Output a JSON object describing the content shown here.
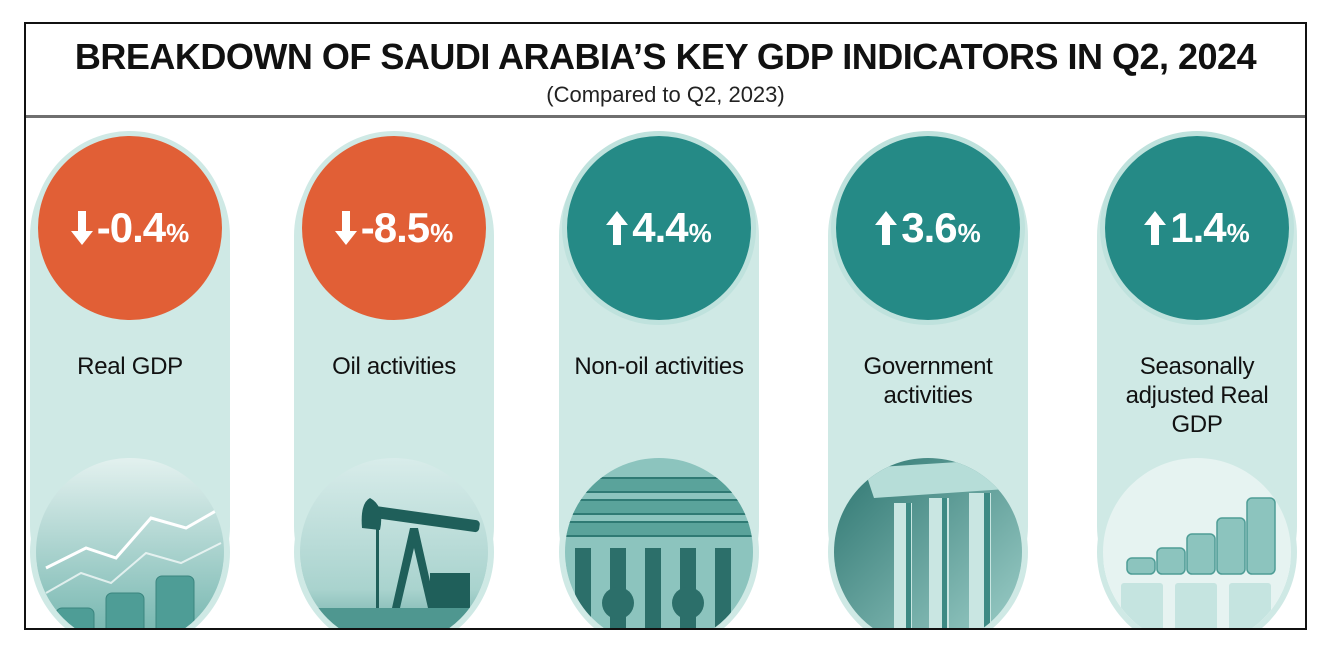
{
  "header": {
    "title": "BREAKDOWN OF SAUDI ARABIA’S KEY GDP INDICATORS IN Q2, 2024",
    "subtitle": "(Compared to Q2, 2023)"
  },
  "colors": {
    "decline": "#e15f36",
    "growth": "#258a86",
    "pill": "#cfe9e5"
  },
  "chart_data": {
    "type": "table",
    "title": "BREAKDOWN OF SAUDI ARABIA’S KEY GDP INDICATORS IN Q2, 2024",
    "subtitle": "(Compared to Q2, 2023)",
    "items": [
      {
        "label": "Real GDP",
        "value": -0.4,
        "display": "-0.4",
        "unit": "%",
        "direction": "down",
        "icon": "arrow-down-icon",
        "image": "coins-chart-photo"
      },
      {
        "label": "Oil activities",
        "value": -8.5,
        "display": "-8.5",
        "unit": "%",
        "direction": "down",
        "icon": "arrow-down-icon",
        "image": "oil-pump-photo"
      },
      {
        "label": "Non-oil activities",
        "value": 4.4,
        "display": "4.4",
        "unit": "%",
        "direction": "up",
        "icon": "arrow-up-icon",
        "image": "pipes-photo"
      },
      {
        "label": "Government activities",
        "value": 3.6,
        "display": "3.6",
        "unit": "%",
        "direction": "up",
        "icon": "arrow-up-icon",
        "image": "columns-photo"
      },
      {
        "label": "Seasonally adjusted Real GDP",
        "value": 1.4,
        "display": "1.4",
        "unit": "%",
        "direction": "up",
        "icon": "arrow-up-icon",
        "image": "gdp-coins-photo"
      }
    ]
  }
}
